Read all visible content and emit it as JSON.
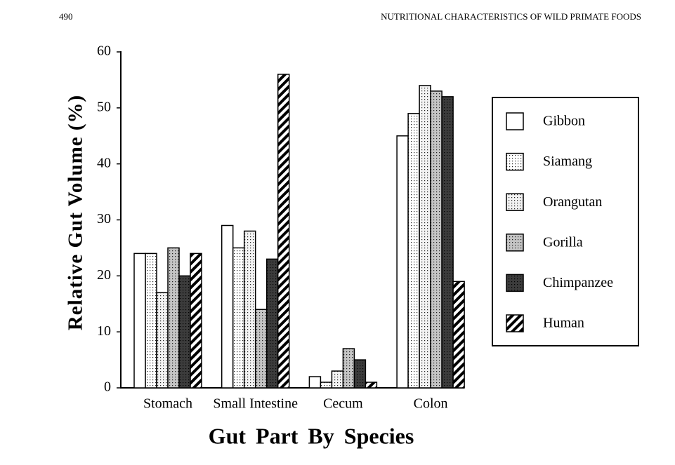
{
  "page_header": {
    "page_number": "490",
    "running_title": "NUTRITIONAL CHARACTERISTICS OF WILD PRIMATE FOODS"
  },
  "chart_data": {
    "type": "bar",
    "y_label": "Relative Gut Volume (%)",
    "x_label": "Gut Part By Species",
    "categories": [
      "Stomach",
      "Small Intestine",
      "Cecum",
      "Colon"
    ],
    "series": [
      {
        "name": "Gibbon",
        "color": "#ffffff",
        "pattern": "none",
        "values": [
          24,
          29,
          2,
          45
        ]
      },
      {
        "name": "Siamang",
        "color": "#ffffff",
        "pattern": "dots",
        "values": [
          24,
          25,
          1,
          49
        ]
      },
      {
        "name": "Orangutan",
        "color": "#f2f2f2",
        "pattern": "dots",
        "values": [
          17,
          28,
          3,
          54
        ]
      },
      {
        "name": "Gorilla",
        "color": "#c4c4c4",
        "pattern": "dots",
        "values": [
          25,
          14,
          7,
          53
        ]
      },
      {
        "name": "Chimpanzee",
        "color": "#3c3c3c",
        "pattern": "dots",
        "values": [
          20,
          23,
          5,
          52
        ]
      },
      {
        "name": "Human",
        "color": "#ffffff",
        "pattern": "hatch",
        "values": [
          24,
          56,
          1,
          19
        ]
      }
    ],
    "ylim": [
      0,
      60
    ],
    "yticks": [
      0,
      10,
      20,
      30,
      40,
      50,
      60
    ],
    "legend": "right"
  }
}
